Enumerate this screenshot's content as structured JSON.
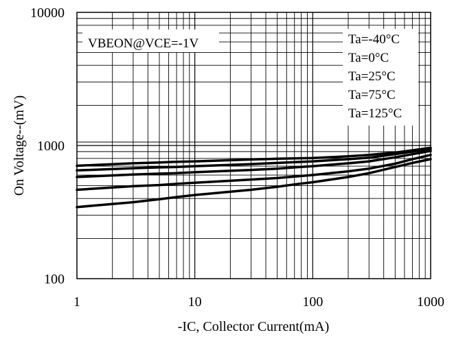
{
  "chart_data": {
    "type": "line",
    "xscale": "log",
    "yscale": "log",
    "xlim": [
      1,
      1000
    ],
    "ylim": [
      100,
      10000
    ],
    "xlabel": "-IC, Collector Current(mA)",
    "ylabel": "On Voltage--(mV)",
    "xticks": [
      1,
      10,
      100,
      1000
    ],
    "yticks": [
      100,
      1000,
      10000
    ],
    "xtick_labels": [
      "1",
      "10",
      "100",
      "1000"
    ],
    "ytick_labels": [
      "100",
      "1000",
      "10000"
    ],
    "grid": true,
    "annotation": "VBEON@VCE=-1V",
    "legend_position": "top-right",
    "line_color": "#000000",
    "series": [
      {
        "name": "Ta=-40°C",
        "x": [
          1,
          3,
          5,
          7,
          10,
          30,
          50,
          70,
          100,
          200,
          300,
          500,
          700,
          1000
        ],
        "y": [
          705,
          735,
          745,
          755,
          760,
          785,
          795,
          800,
          805,
          830,
          850,
          885,
          920,
          960
        ]
      },
      {
        "name": "Ta=0°C",
        "x": [
          1,
          3,
          5,
          7,
          10,
          30,
          50,
          70,
          100,
          200,
          300,
          500,
          700,
          1000
        ],
        "y": [
          650,
          675,
          685,
          690,
          700,
          725,
          740,
          750,
          760,
          790,
          810,
          860,
          900,
          940
        ]
      },
      {
        "name": "Ta=25°C",
        "x": [
          1,
          3,
          5,
          7,
          10,
          30,
          50,
          70,
          100,
          200,
          300,
          500,
          700,
          1000
        ],
        "y": [
          580,
          605,
          615,
          620,
          630,
          655,
          670,
          685,
          700,
          735,
          760,
          815,
          860,
          910
        ]
      },
      {
        "name": "Ta=75°C",
        "x": [
          1,
          3,
          5,
          7,
          10,
          30,
          50,
          70,
          100,
          200,
          300,
          500,
          700,
          1000
        ],
        "y": [
          465,
          495,
          505,
          515,
          525,
          555,
          570,
          585,
          600,
          640,
          670,
          730,
          790,
          850
        ]
      },
      {
        "name": "Ta=125°C",
        "x": [
          1,
          3,
          5,
          7,
          10,
          30,
          50,
          70,
          100,
          200,
          300,
          500,
          700,
          1000
        ],
        "y": [
          345,
          375,
          395,
          410,
          425,
          465,
          490,
          510,
          530,
          580,
          620,
          690,
          740,
          790
        ]
      }
    ]
  }
}
